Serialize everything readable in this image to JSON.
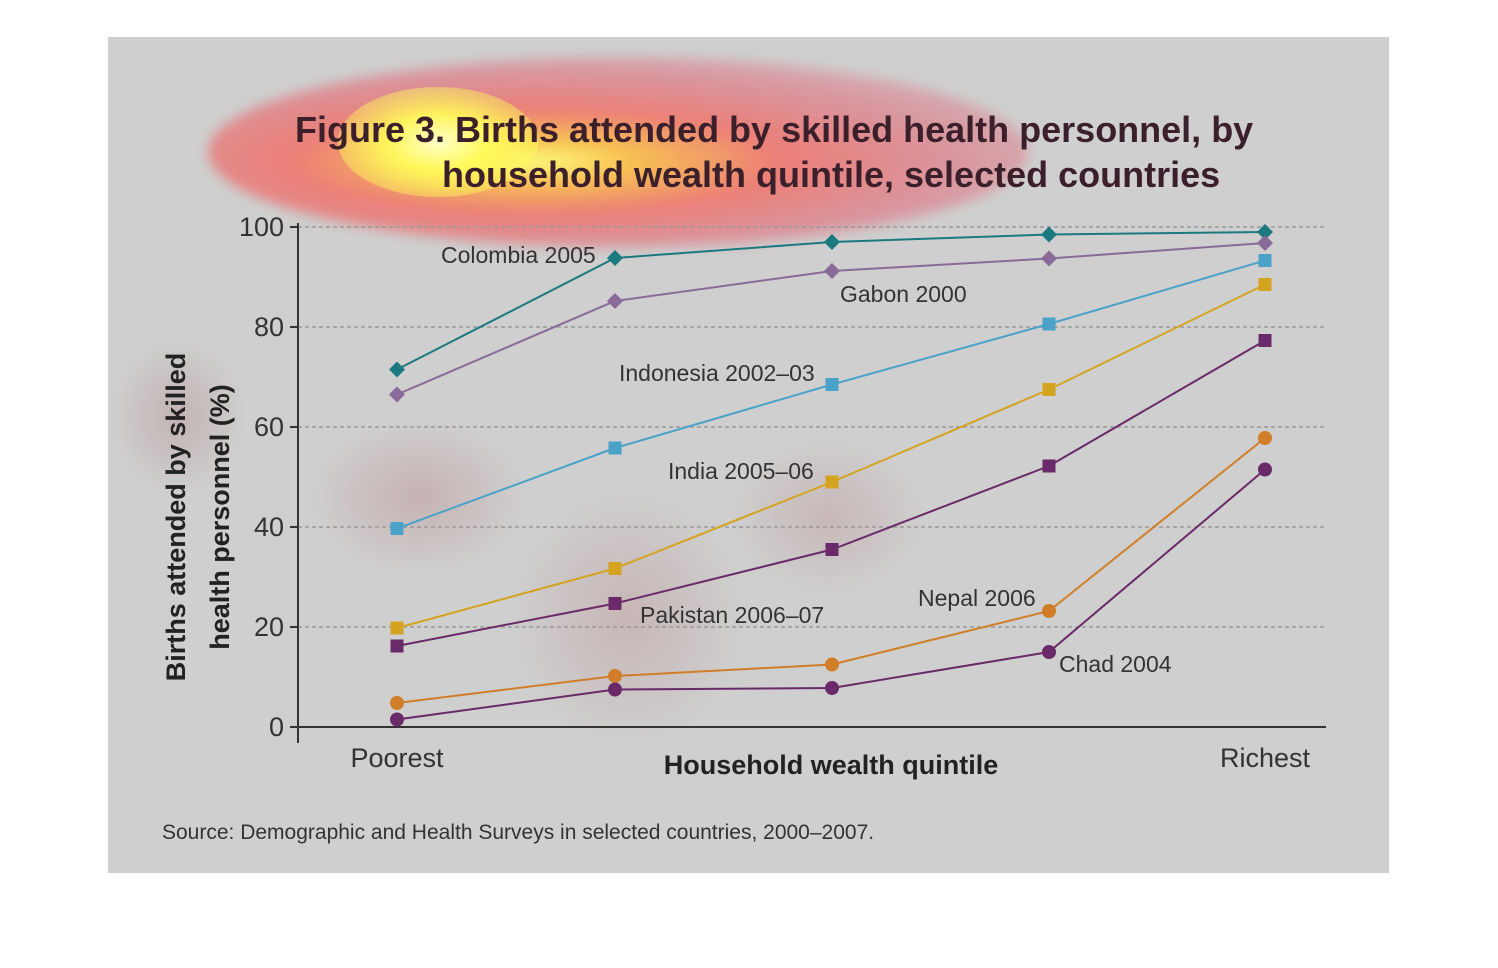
{
  "chart_data": {
    "type": "line",
    "title": "Figure 3. Births attended by skilled health personnel, by household wealth quintile, selected countries",
    "title_lines": [
      "Figure 3. Births attended by skilled health personnel, by",
      "household wealth quintile, selected countries"
    ],
    "xlabel": "Household wealth quintile",
    "ylabel": "Births attended by skilled health personnel (%)",
    "ylabel_lines": [
      "Births attended by skilled",
      "health personnel (%)"
    ],
    "x_tick_labels": [
      "Poorest",
      "Richest"
    ],
    "categories": [
      "Poorest",
      "",
      "",
      "",
      "Richest"
    ],
    "ylim": [
      0,
      100
    ],
    "yticks": [
      0,
      20,
      40,
      60,
      80,
      100
    ],
    "grid": "horizontal dashed",
    "source": "Source: Demographic and Health Surveys in selected countries, 2000–2007.",
    "series": [
      {
        "name": "Colombia 2005",
        "values": [
          71.5,
          93.8,
          97,
          98.5,
          99
        ],
        "color": "#1a7a80",
        "marker": "diamond"
      },
      {
        "name": "Gabon 2000",
        "values": [
          66.5,
          85.2,
          91.2,
          93.7,
          96.8
        ],
        "color": "#8a6a98",
        "marker": "diamond"
      },
      {
        "name": "Indonesia 2002–03",
        "values": [
          39.7,
          55.8,
          68.5,
          80.6,
          93.3
        ],
        "color": "#4aa2c8",
        "marker": "square"
      },
      {
        "name": "India 2005–06",
        "values": [
          19.8,
          31.7,
          49,
          67.5,
          88.5
        ],
        "color": "#d4a320",
        "marker": "square"
      },
      {
        "name": "Pakistan 2006–07",
        "values": [
          16.2,
          24.7,
          35.5,
          52.2,
          77.3
        ],
        "color": "#6a2a6a",
        "marker": "square"
      },
      {
        "name": "Nepal 2006",
        "values": [
          4.8,
          10.2,
          12.5,
          23.2,
          57.8
        ],
        "color": "#d07e28",
        "marker": "circle"
      },
      {
        "name": "Chad 2004",
        "values": [
          1.5,
          7.5,
          7.8,
          15,
          51.5
        ],
        "color": "#6a2a6a",
        "marker": "circle"
      }
    ]
  }
}
